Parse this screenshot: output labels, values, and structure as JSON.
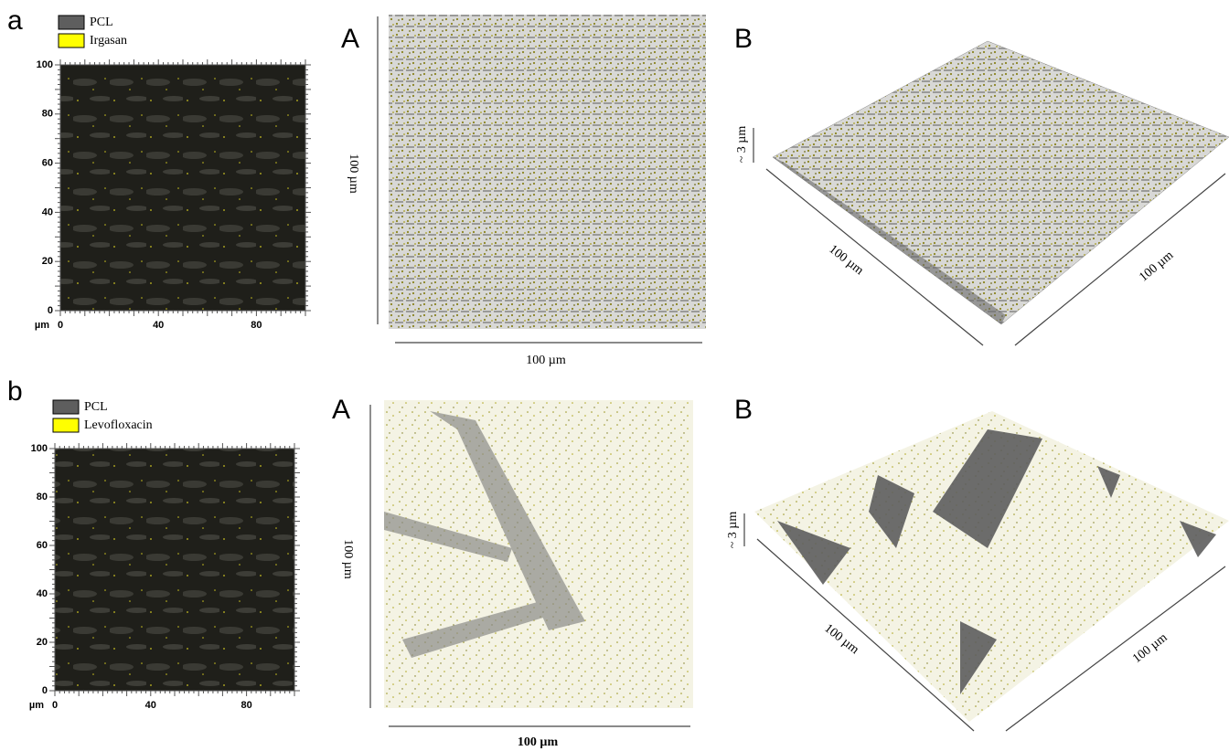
{
  "figure": {
    "rows": [
      {
        "label": "a",
        "legend": [
          {
            "name": "PCL",
            "color": "#5e5e5e"
          },
          {
            "name": "Irgasan",
            "color": "#ffff00"
          }
        ],
        "confocal": {
          "yticks": [
            100,
            80,
            60,
            40,
            20,
            0
          ],
          "xticks": [
            0,
            40,
            80
          ],
          "unit": "µm"
        },
        "panel_A": {
          "label": "A",
          "y_scale": "100 µm",
          "x_scale": "100 µm"
        },
        "panel_B": {
          "label": "B",
          "z_scale": "~ 3 µm",
          "x_scale": "100 µm",
          "y_scale": "100 µm"
        }
      },
      {
        "label": "b",
        "legend": [
          {
            "name": "PCL",
            "color": "#5e5e5e"
          },
          {
            "name": "Levofloxacin",
            "color": "#ffff00"
          }
        ],
        "confocal": {
          "yticks": [
            100,
            80,
            60,
            40,
            20,
            0
          ],
          "xticks": [
            0,
            40,
            80
          ],
          "unit": "µm"
        },
        "panel_A": {
          "label": "A",
          "y_scale": "100 µm",
          "x_scale": "100 µm"
        },
        "panel_B": {
          "label": "B",
          "z_scale": "~ 3 µm",
          "x_scale": "100 µm",
          "y_scale": "100 µm"
        }
      }
    ]
  }
}
